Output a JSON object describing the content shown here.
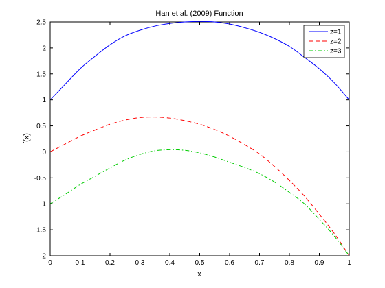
{
  "chart_data": {
    "type": "line",
    "title": "Han et al. (2009) Function",
    "xlabel": "x",
    "ylabel": "f(x)",
    "xlim": [
      0,
      1
    ],
    "ylim": [
      -2,
      2.5
    ],
    "xticks": [
      "0",
      "0.1",
      "0.2",
      "0.3",
      "0.4",
      "0.5",
      "0.6",
      "0.7",
      "0.8",
      "0.9",
      "1"
    ],
    "yticks": [
      "-2",
      "-1.5",
      "-1",
      "-0.5",
      "0",
      "0.5",
      "1",
      "1.5",
      "2",
      "2.5"
    ],
    "grid": false,
    "legend_position": "top-right",
    "x": [
      0,
      0.05,
      0.1,
      0.15,
      0.2,
      0.25,
      0.3,
      0.35,
      0.4,
      0.45,
      0.5,
      0.55,
      0.6,
      0.65,
      0.7,
      0.75,
      0.8,
      0.85,
      0.9,
      0.95,
      1
    ],
    "series": [
      {
        "name": "z=1",
        "color": "#0000ff",
        "dash": "solid",
        "values": [
          1.0,
          1.3,
          1.6,
          1.84,
          2.06,
          2.23,
          2.34,
          2.42,
          2.47,
          2.5,
          2.51,
          2.5,
          2.46,
          2.39,
          2.3,
          2.18,
          2.03,
          1.82,
          1.6,
          1.33,
          1.0
        ]
      },
      {
        "name": "z=2",
        "color": "#ff0000",
        "dash": "dashed",
        "values": [
          0.0,
          0.15,
          0.3,
          0.42,
          0.53,
          0.61,
          0.66,
          0.67,
          0.65,
          0.6,
          0.53,
          0.43,
          0.3,
          0.14,
          -0.04,
          -0.28,
          -0.55,
          -0.85,
          -1.2,
          -1.57,
          -2.0
        ]
      },
      {
        "name": "z=3",
        "color": "#00cc00",
        "dash": "dashdot",
        "values": [
          -1.0,
          -0.82,
          -0.63,
          -0.47,
          -0.31,
          -0.16,
          -0.05,
          0.02,
          0.04,
          0.03,
          -0.02,
          -0.1,
          -0.2,
          -0.3,
          -0.42,
          -0.58,
          -0.78,
          -1.0,
          -1.3,
          -1.62,
          -2.0
        ]
      }
    ]
  }
}
